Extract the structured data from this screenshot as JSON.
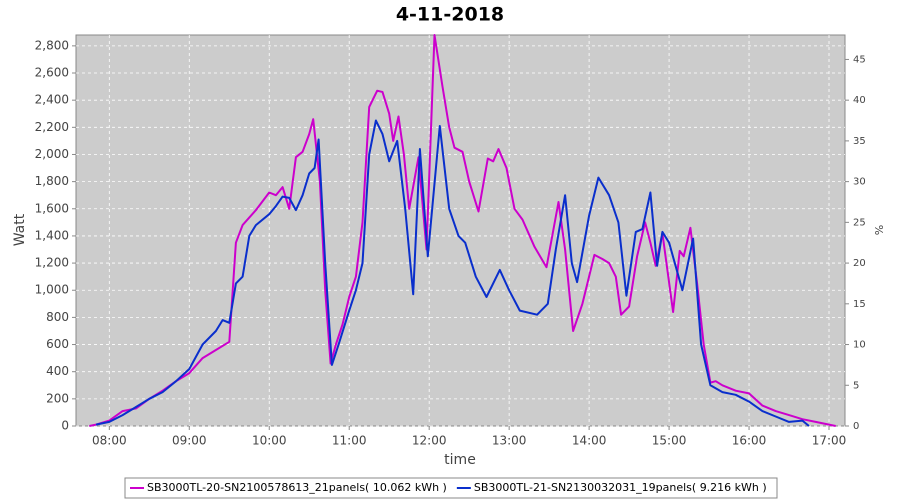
{
  "chart_data": {
    "type": "line",
    "title": "4-11-2018",
    "x_label": "time",
    "y_label": "Watt",
    "y2_label": "%",
    "xlim": [
      "07:35",
      "17:12"
    ],
    "xticks": [
      "08:00",
      "09:00",
      "10:00",
      "11:00",
      "12:00",
      "13:00",
      "14:00",
      "15:00",
      "16:00",
      "17:00"
    ],
    "ylim": [
      0,
      2880
    ],
    "yticks": [
      0,
      200,
      400,
      600,
      800,
      {
        "value": 1000,
        "label": "1,000"
      },
      {
        "value": 1200,
        "label": "1,200"
      },
      {
        "value": 1400,
        "label": "1,400"
      },
      {
        "value": 1600,
        "label": "1,600"
      },
      {
        "value": 1800,
        "label": "1,800"
      },
      {
        "value": 2000,
        "label": "2,000"
      },
      {
        "value": 2200,
        "label": "2,200"
      },
      {
        "value": 2400,
        "label": "2,400"
      },
      {
        "value": 2600,
        "label": "2,600"
      },
      {
        "value": 2800,
        "label": "2,800"
      }
    ],
    "y2lim": [
      0,
      48
    ],
    "y2ticks": [
      0,
      5,
      10,
      15,
      20,
      25,
      30,
      35,
      40,
      45
    ],
    "grid": true,
    "legend": "bottom",
    "series": [
      {
        "name": "SB3000TL-20-SN2100578613_21panels( 10.062 kWh )",
        "color": "#cc00cc",
        "x": [
          "07:45",
          "07:50",
          "08:00",
          "08:10",
          "08:20",
          "08:30",
          "08:40",
          "08:50",
          "09:00",
          "09:10",
          "09:20",
          "09:30",
          "09:35",
          "09:40",
          "09:50",
          "10:00",
          "10:05",
          "10:10",
          "10:15",
          "10:20",
          "10:25",
          "10:30",
          "10:33",
          "10:38",
          "10:42",
          "10:46",
          "10:50",
          "10:55",
          "11:00",
          "11:05",
          "11:10",
          "11:15",
          "11:21",
          "11:25",
          "11:30",
          "11:33",
          "11:37",
          "11:41",
          "11:45",
          "11:52",
          "11:58",
          "12:04",
          "12:10",
          "12:15",
          "12:19",
          "12:25",
          "12:30",
          "12:37",
          "12:44",
          "12:48",
          "12:52",
          "12:58",
          "13:04",
          "13:10",
          "13:19",
          "13:28",
          "13:37",
          "13:42",
          "13:48",
          "13:55",
          "14:04",
          "14:10",
          "14:15",
          "14:20",
          "14:24",
          "14:30",
          "14:36",
          "14:42",
          "14:46",
          "14:50",
          "14:55",
          "15:03",
          "15:08",
          "15:11",
          "15:16",
          "15:21",
          "15:26",
          "15:31",
          "15:35",
          "15:40",
          "15:50",
          "16:00",
          "16:10",
          "16:20",
          "16:30",
          "16:40",
          "16:50",
          "17:00",
          "17:05"
        ],
        "values": [
          0,
          10,
          40,
          110,
          130,
          200,
          260,
          330,
          390,
          500,
          560,
          620,
          1350,
          1480,
          1590,
          1720,
          1700,
          1760,
          1600,
          1980,
          2020,
          2150,
          2260,
          1800,
          1000,
          460,
          600,
          750,
          950,
          1100,
          1500,
          2350,
          2470,
          2460,
          2300,
          2100,
          2280,
          2000,
          1600,
          1980,
          1300,
          2880,
          2500,
          2200,
          2050,
          2020,
          1800,
          1580,
          1970,
          1950,
          2040,
          1900,
          1600,
          1520,
          1320,
          1170,
          1650,
          1300,
          700,
          900,
          1260,
          1230,
          1200,
          1100,
          820,
          880,
          1250,
          1500,
          1350,
          1180,
          1420,
          840,
          1290,
          1250,
          1460,
          1050,
          600,
          320,
          330,
          300,
          260,
          240,
          150,
          110,
          80,
          50,
          30,
          10,
          0
        ]
      },
      {
        "name": "SB3000TL-21-SN2130032031_19panels( 9.216 kWh )",
        "color": "#0a2fcc",
        "x": [
          "07:50",
          "08:00",
          "08:10",
          "08:20",
          "08:30",
          "08:40",
          "08:50",
          "09:00",
          "09:10",
          "09:20",
          "09:25",
          "09:30",
          "09:35",
          "09:40",
          "09:45",
          "09:50",
          "10:00",
          "10:05",
          "10:10",
          "10:15",
          "10:20",
          "10:25",
          "10:30",
          "10:34",
          "10:37",
          "10:42",
          "10:47",
          "10:52",
          "11:00",
          "11:05",
          "11:10",
          "11:15",
          "11:20",
          "11:25",
          "11:30",
          "11:36",
          "11:42",
          "11:48",
          "11:53",
          "11:59",
          "12:08",
          "12:15",
          "12:22",
          "12:27",
          "12:35",
          "12:43",
          "12:53",
          "13:00",
          "13:08",
          "13:21",
          "13:29",
          "13:35",
          "13:42",
          "13:47",
          "13:51",
          "14:00",
          "14:07",
          "14:15",
          "14:22",
          "14:28",
          "14:35",
          "14:40",
          "14:46",
          "14:51",
          "14:55",
          "15:00",
          "15:10",
          "15:18",
          "15:24",
          "15:31",
          "15:40",
          "15:50",
          "16:00",
          "16:10",
          "16:20",
          "16:30",
          "16:40",
          "16:45"
        ],
        "values": [
          10,
          30,
          80,
          140,
          200,
          250,
          330,
          420,
          600,
          700,
          780,
          760,
          1050,
          1100,
          1400,
          1480,
          1560,
          1620,
          1690,
          1680,
          1590,
          1700,
          1860,
          1900,
          2110,
          1200,
          450,
          600,
          850,
          1000,
          1200,
          2000,
          2250,
          2150,
          1950,
          2100,
          1600,
          970,
          2040,
          1250,
          2210,
          1600,
          1400,
          1350,
          1100,
          950,
          1150,
          1000,
          850,
          820,
          900,
          1300,
          1700,
          1200,
          1060,
          1550,
          1830,
          1700,
          1500,
          960,
          1430,
          1450,
          1720,
          1180,
          1430,
          1350,
          1000,
          1380,
          600,
          300,
          250,
          230,
          180,
          110,
          70,
          30,
          40,
          0
        ]
      }
    ]
  }
}
